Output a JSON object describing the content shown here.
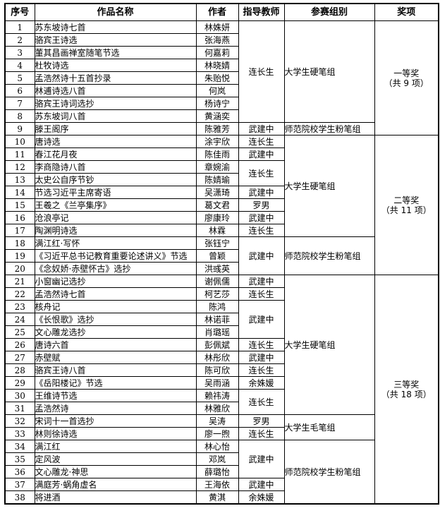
{
  "table": {
    "headers": [
      "序号",
      "作品名称",
      "作者",
      "指导教师",
      "参赛组别",
      "奖项"
    ],
    "teachers": {
      "lcs": "连长生",
      "wjz": "武建中",
      "ln": "罗男",
      "ysy": "余姝媛"
    },
    "groups": {
      "hard_pen": "大学生硬笔组",
      "chalk": "师范院校学生粉笔组",
      "brush": "大学生毛笔组"
    },
    "awards": [
      {
        "label": "一等奖",
        "count": "（共 9 项）",
        "rowspan": 9
      },
      {
        "label": "二等奖",
        "count": "（共 11 项）",
        "rowspan": 11
      },
      {
        "label": "三等奖",
        "count": "（共 18 项）",
        "rowspan": 18
      }
    ],
    "rows": [
      {
        "no": "1",
        "title": "苏东坡诗七首",
        "author": "林姝妍",
        "teacher": {
          "text": "连长生",
          "rowspan": 8
        },
        "group": {
          "text": "大学生硬笔组",
          "rowspan": 8
        },
        "award_index": 0
      },
      {
        "no": "2",
        "title": "骆宾王诗选",
        "author": "张海燕"
      },
      {
        "no": "3",
        "title": "董其昌画禅室随笔节选",
        "author": "何嘉莉"
      },
      {
        "no": "4",
        "title": "杜牧诗选",
        "author": "林晓婧"
      },
      {
        "no": "5",
        "title": "孟浩然诗十五首抄录",
        "author": "朱贻悦"
      },
      {
        "no": "6",
        "title": "林逋诗选八首",
        "author": "何岚"
      },
      {
        "no": "7",
        "title": "骆宾王诗词选抄",
        "author": "杨诗宁"
      },
      {
        "no": "8",
        "title": "苏东坡词八首",
        "author": "黄涵奕"
      },
      {
        "no": "9",
        "title": "滕王阁序",
        "author": "陈雅芳",
        "teacher": {
          "text": "武建中",
          "rowspan": 1
        },
        "group": {
          "text": "师范院校学生粉笔组",
          "rowspan": 1
        }
      },
      {
        "no": "10",
        "title": "唐诗选",
        "author": "涂宇欣",
        "teacher": {
          "text": "连长生",
          "rowspan": 1
        },
        "group": {
          "text": "大学生硬笔组",
          "rowspan": 8
        },
        "award_index": 1
      },
      {
        "no": "11",
        "title": "春江花月夜",
        "author": "陈佳雨",
        "teacher": {
          "text": "武建中",
          "rowspan": 1
        }
      },
      {
        "no": "12",
        "title": "李商隐诗八首",
        "author": "章婉渝",
        "teacher": {
          "text": "连长生",
          "rowspan": 2
        }
      },
      {
        "no": "13",
        "title": "太史公自序节钞",
        "author": "陈婧瑜"
      },
      {
        "no": "14",
        "title": "节选习近平主席寄语",
        "author": "吴潇琦",
        "teacher": {
          "text": "武建中",
          "rowspan": 1
        }
      },
      {
        "no": "15",
        "title": "王羲之《兰亭集序》",
        "author": "葛文君",
        "teacher": {
          "text": "罗男",
          "rowspan": 1
        }
      },
      {
        "no": "16",
        "title": "沧浪亭记",
        "author": "廖康玲",
        "teacher": {
          "text": "武建中",
          "rowspan": 1
        }
      },
      {
        "no": "17",
        "title": "陶渊明诗选",
        "author": "林霖",
        "teacher": {
          "text": "连长生",
          "rowspan": 1
        }
      },
      {
        "no": "18",
        "title": "满江红·写怀",
        "author": "张钰宁",
        "teacher": {
          "text": "武建中",
          "rowspan": 3
        },
        "group": {
          "text": "师范院校学生粉笔组",
          "rowspan": 3
        }
      },
      {
        "no": "19",
        "title": "《习近平总书记教育重要论述讲义》节选",
        "author": "曾颖"
      },
      {
        "no": "20",
        "title": "《念奴娇·赤壁怀古》选抄",
        "author": "洪彧英"
      },
      {
        "no": "21",
        "title": "小窗幽记选抄",
        "author": "谢佩儒",
        "teacher": {
          "text": "武建中",
          "rowspan": 1
        },
        "group": {
          "text": "大学生硬笔组",
          "rowspan": 11
        },
        "award_index": 2
      },
      {
        "no": "22",
        "title": "孟浩然诗七首",
        "author": "柯艺莎",
        "teacher": {
          "text": "连长生",
          "rowspan": 1
        }
      },
      {
        "no": "23",
        "title": "核舟记",
        "author": "陈鸿",
        "teacher": {
          "text": "武建中",
          "rowspan": 3
        }
      },
      {
        "no": "24",
        "title": "《长恨歌》选抄",
        "author": "林诺菲"
      },
      {
        "no": "25",
        "title": "文心雕龙选抄",
        "author": "肖璐瑶"
      },
      {
        "no": "26",
        "title": "唐诗六首",
        "author": "彭佩斌",
        "teacher": {
          "text": "连长生",
          "rowspan": 1
        }
      },
      {
        "no": "27",
        "title": "赤壁赋",
        "author": "林彤欣",
        "teacher": {
          "text": "武建中",
          "rowspan": 1
        }
      },
      {
        "no": "28",
        "title": "骆宾王诗八首",
        "author": "陈可欣",
        "teacher": {
          "text": "连长生",
          "rowspan": 1
        }
      },
      {
        "no": "29",
        "title": "《岳阳楼记》节选",
        "author": "吴雨涵",
        "teacher": {
          "text": "余姝媛",
          "rowspan": 1
        }
      },
      {
        "no": "30",
        "title": "王维诗节选",
        "author": "赖祎涛",
        "teacher": {
          "text": "连长生",
          "rowspan": 2
        }
      },
      {
        "no": "31",
        "title": "孟浩然诗",
        "author": "林雅欣"
      },
      {
        "no": "32",
        "title": "宋词十一首选抄",
        "author": "吴涛",
        "teacher": {
          "text": "罗男",
          "rowspan": 1
        },
        "group": {
          "text": "大学生毛笔组",
          "rowspan": 2
        }
      },
      {
        "no": "33",
        "title": "林则徐诗选",
        "author": "廖一煦",
        "teacher": {
          "text": "连长生",
          "rowspan": 1
        }
      },
      {
        "no": "34",
        "title": "满江红",
        "author": "林心怡",
        "teacher": {
          "text": "武建中",
          "rowspan": 3
        },
        "group": {
          "text": "师范院校学生粉笔组",
          "rowspan": 5
        }
      },
      {
        "no": "35",
        "title": "定风波",
        "author": "邓岚"
      },
      {
        "no": "36",
        "title": "文心雕龙·神思",
        "author": "薛璐怡"
      },
      {
        "no": "37",
        "title": "满庭芳·蜗角虚名",
        "author": "王海依",
        "teacher": {
          "text": "武建中",
          "rowspan": 1
        }
      },
      {
        "no": "38",
        "title": "将进酒",
        "author": "黄淇",
        "teacher": {
          "text": "余姝媛",
          "rowspan": 1
        }
      }
    ]
  }
}
